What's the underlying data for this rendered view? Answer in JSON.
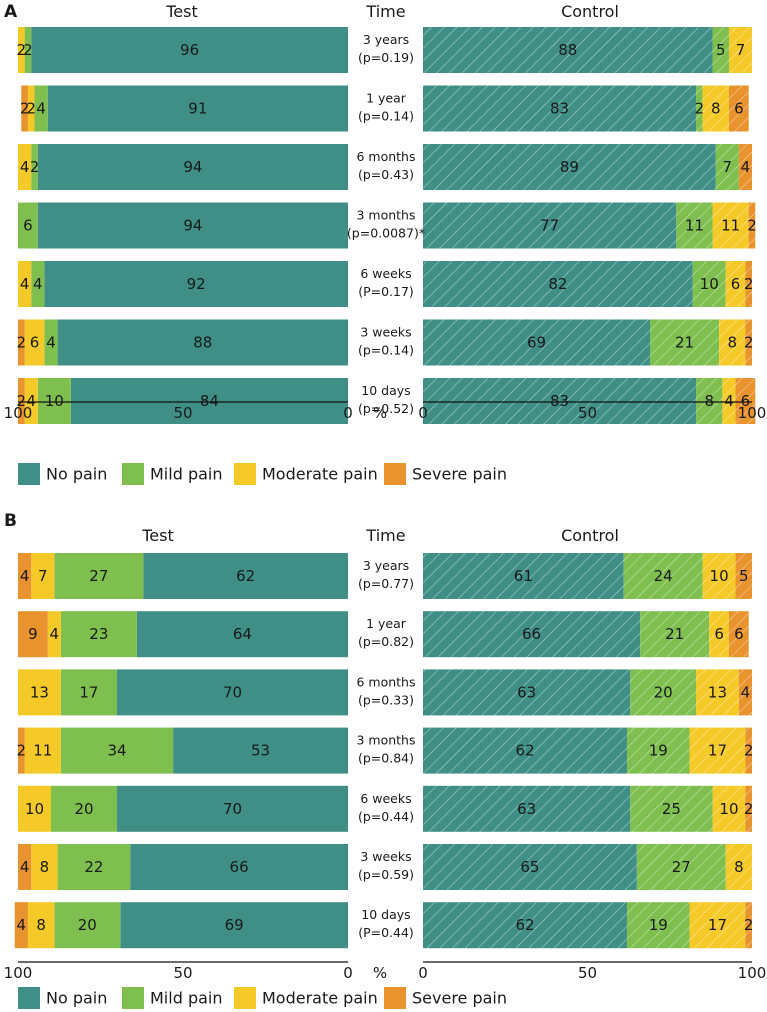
{
  "chart_data": [
    {
      "type": "bar",
      "panel": "A",
      "left_title": "Test",
      "middle_title": "Time",
      "right_title": "Control",
      "unit_label": "%",
      "left_ticks": [
        "100",
        "50",
        "0"
      ],
      "right_ticks": [
        "0",
        "50",
        "100"
      ],
      "legend": [
        "No pain",
        "Mild pain",
        "Moderate pain",
        "Severe pain"
      ],
      "rows": [
        {
          "time": "3 years",
          "p": "(p=0.19)",
          "test": [
            96,
            2,
            2,
            0
          ],
          "control": [
            88,
            5,
            7,
            0
          ]
        },
        {
          "time": "1 year",
          "p": "(p=0.14)",
          "test": [
            91,
            4,
            2,
            2
          ],
          "control": [
            83,
            2,
            8,
            6
          ]
        },
        {
          "time": "6 months",
          "p": "(p=0.43)",
          "test": [
            94,
            2,
            4,
            0
          ],
          "control": [
            89,
            7,
            0,
            4
          ]
        },
        {
          "time": "3 months",
          "p": "(p=0.0087)*",
          "test": [
            94,
            6,
            0,
            0
          ],
          "control": [
            77,
            11,
            11,
            2
          ]
        },
        {
          "time": "6 weeks",
          "p": "(P=0.17)",
          "test": [
            92,
            4,
            4,
            0
          ],
          "control": [
            82,
            10,
            6,
            2
          ]
        },
        {
          "time": "3 weeks",
          "p": "(p=0.14)",
          "test": [
            88,
            4,
            6,
            2
          ],
          "control": [
            69,
            21,
            8,
            2
          ]
        },
        {
          "time": "10 days",
          "p": "(p=0.52)",
          "test": [
            84,
            10,
            4,
            2
          ],
          "control": [
            83,
            8,
            4,
            6
          ]
        }
      ]
    },
    {
      "type": "bar",
      "panel": "B",
      "left_title": "Test",
      "middle_title": "Time",
      "right_title": "Control",
      "unit_label": "%",
      "left_ticks": [
        "100",
        "50",
        "0"
      ],
      "right_ticks": [
        "0",
        "50",
        "100"
      ],
      "legend": [
        "No pain",
        "Mild pain",
        "Moderate pain",
        "Severe pain"
      ],
      "rows": [
        {
          "time": "3 years",
          "p": "(p=0.77)",
          "test": [
            62,
            27,
            7,
            4
          ],
          "control": [
            61,
            24,
            10,
            5
          ]
        },
        {
          "time": "1 year",
          "p": "(p=0.82)",
          "test": [
            64,
            23,
            4,
            9
          ],
          "control": [
            66,
            21,
            6,
            6
          ]
        },
        {
          "time": "6 months",
          "p": "(p=0.33)",
          "test": [
            70,
            17,
            13,
            0
          ],
          "control": [
            63,
            20,
            13,
            4
          ]
        },
        {
          "time": "3 months",
          "p": "(p=0.84)",
          "test": [
            53,
            34,
            11,
            2
          ],
          "control": [
            62,
            19,
            17,
            2
          ]
        },
        {
          "time": "6 weeks",
          "p": "(p=0.44)",
          "test": [
            70,
            20,
            10,
            0
          ],
          "control": [
            63,
            25,
            10,
            2
          ]
        },
        {
          "time": "3 weeks",
          "p": "(p=0.59)",
          "test": [
            66,
            22,
            8,
            4
          ],
          "control": [
            65,
            27,
            8,
            0
          ]
        },
        {
          "time": "10 days",
          "p": "(P=0.44)",
          "test": [
            69,
            20,
            8,
            4
          ],
          "control": [
            62,
            19,
            17,
            2
          ]
        }
      ]
    }
  ],
  "colors": {
    "no_pain": "#3f8f86",
    "mild_pain": "#7fbf4f",
    "moderate_pain": "#f5c928",
    "severe_pain": "#e8932e"
  }
}
